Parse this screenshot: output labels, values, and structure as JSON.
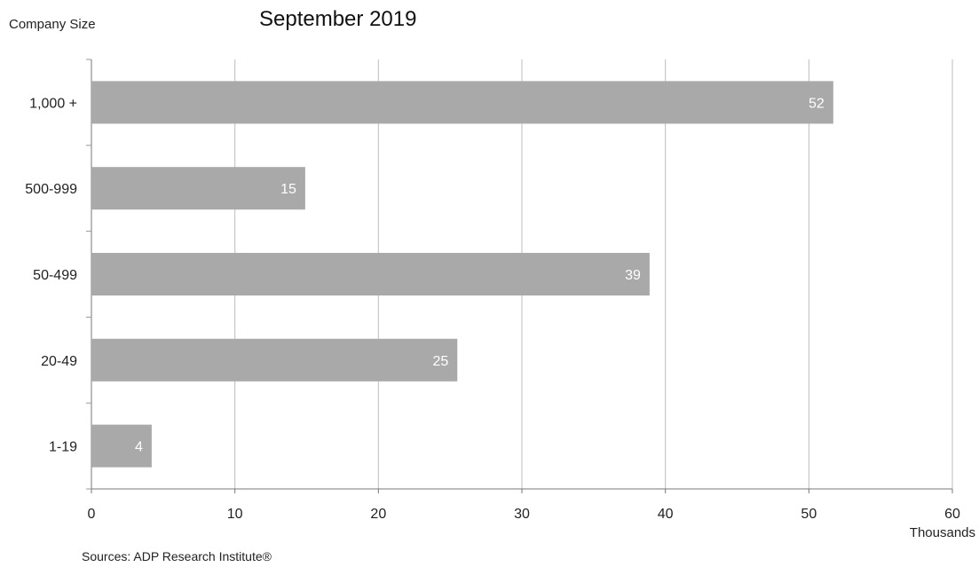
{
  "chart_data": {
    "type": "bar",
    "orientation": "horizontal",
    "title": "September 2019",
    "ylabel": "Company Size",
    "xlabel": "",
    "x_unit": "Thousands",
    "categories": [
      "1,000 +",
      "500-999",
      "50-499",
      "20-49",
      "1-19"
    ],
    "values": [
      51.7,
      14.9,
      38.9,
      25.5,
      4.2
    ],
    "data_labels": [
      "52",
      "15",
      "39",
      "25",
      "4"
    ],
    "xlim": [
      0,
      60
    ],
    "xticks": [
      "0",
      "10",
      "20",
      "30",
      "40",
      "50",
      "60"
    ],
    "grid": "vertical",
    "bar_color": "#a9a9a9",
    "source": "Sources: ADP Research Institute®"
  }
}
